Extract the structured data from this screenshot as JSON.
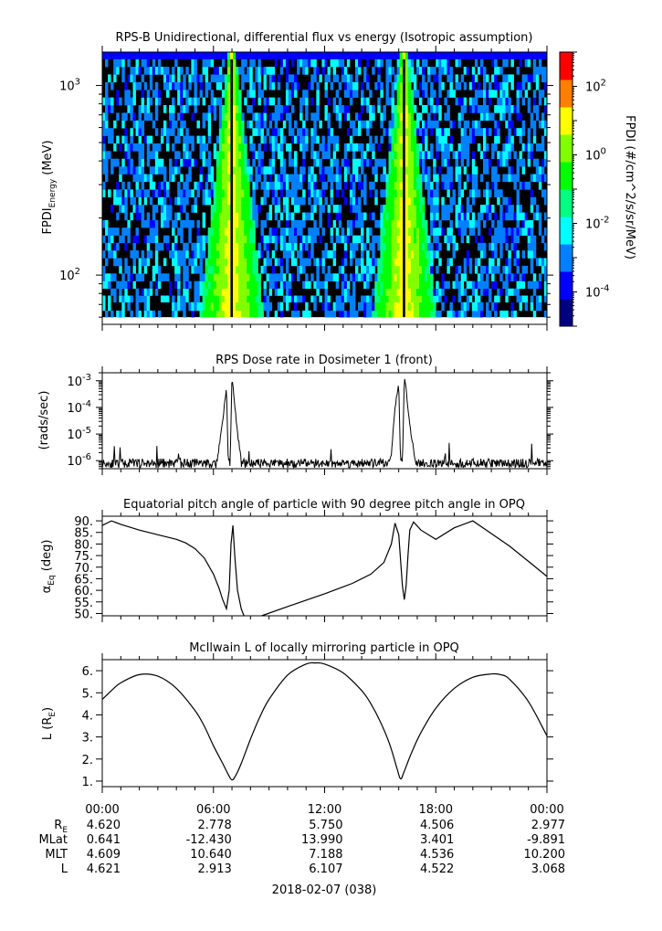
{
  "chart_data": [
    {
      "type": "heatmap",
      "title": "RPS-B  Unidirectional, differential flux vs energy (Isotropic assumption)",
      "ylabel": "FPDI",
      "ylabel_sub": "Energy",
      "ylabel_unit": " (MeV)",
      "yscale": "log",
      "ylim": [
        55,
        1500
      ],
      "yticks": [
        {
          "value": 100,
          "base": "10",
          "exp": "2"
        },
        {
          "value": 1000,
          "base": "10",
          "exp": "3"
        }
      ],
      "x_hours_range": [
        0,
        24
      ],
      "energy_bins_mev": [
        60,
        65,
        72,
        78,
        85,
        93,
        102,
        112,
        123,
        135,
        148,
        162,
        178,
        195,
        214,
        235,
        258,
        283,
        311,
        341,
        374,
        411,
        451,
        495,
        543,
        596,
        654,
        718,
        788,
        865,
        949,
        1042,
        1144,
        1255,
        1378
      ],
      "flux_peaks_hours": [
        7.0,
        16.3
      ],
      "colorbar": {
        "label": "FPDI (#/cm^2/s/sr/MeV)",
        "scale": "log",
        "range": [
          1e-05,
          1000
        ],
        "colors": [
          "#000080",
          "#0000ff",
          "#0080ff",
          "#00ffff",
          "#00ff80",
          "#00ff00",
          "#80ff00",
          "#ffff00",
          "#ff8000",
          "#ff0000"
        ],
        "ticks": [
          {
            "value": 0.0001,
            "base": "10",
            "exp": "-4"
          },
          {
            "value": 0.01,
            "base": "10",
            "exp": "-2"
          },
          {
            "value": 1,
            "base": "10",
            "exp": "0"
          },
          {
            "value": 100,
            "base": "10",
            "exp": "2"
          }
        ]
      }
    },
    {
      "type": "line",
      "title": "RPS  Dose rate in Dosimeter 1 (front)",
      "ylabel": "(rads/sec)",
      "yscale": "log",
      "ylim": [
        5e-07,
        0.002
      ],
      "yticks": [
        {
          "value": 1e-06,
          "base": "10",
          "exp": "-6"
        },
        {
          "value": 1e-05,
          "base": "10",
          "exp": "-5"
        },
        {
          "value": 0.0001,
          "base": "10",
          "exp": "-4"
        },
        {
          "value": 0.001,
          "base": "10",
          "exp": "-3"
        }
      ],
      "x_hours": [
        0,
        5.9,
        6.2,
        6.5,
        6.7,
        6.8,
        6.9,
        7.0,
        7.1,
        7.3,
        7.5,
        8.0,
        15.3,
        15.6,
        15.8,
        16.0,
        16.1,
        16.2,
        16.3,
        16.4,
        16.6,
        16.9,
        17.3,
        24
      ],
      "values": [
        8e-07,
        8e-07,
        1e-06,
        3e-05,
        0.0006,
        8e-07,
        8e-07,
        0.0012,
        0.0003,
        1e-05,
        1.2e-06,
        8e-07,
        8e-07,
        1.5e-06,
        0.0001,
        0.0009,
        8e-07,
        8e-07,
        0.0015,
        0.0005,
        2e-05,
        1e-06,
        8e-07,
        8e-07
      ],
      "baseline_noise_level": 8e-07
    },
    {
      "type": "line",
      "title": "Equatorial pitch angle of particle with 90 degree pitch angle in OPQ",
      "ylabel": "α",
      "ylabel_sub": "Eq",
      "ylabel_unit": " (deg)",
      "ylim": [
        49,
        92
      ],
      "yticks": [
        50,
        55,
        60,
        65,
        70,
        75,
        80,
        85,
        90
      ],
      "ytick_labels": [
        "50.",
        "55.",
        "60.",
        "65.",
        "70.",
        "75.",
        "80.",
        "85.",
        "90."
      ],
      "segments": [
        {
          "x_hours": [
            0,
            0.5,
            1,
            2,
            3,
            4,
            4.5,
            5,
            5.5,
            6,
            6.3,
            6.5,
            6.7,
            6.85,
            6.95,
            7.05,
            7.15,
            7.3,
            7.5,
            7.65
          ],
          "values": [
            88,
            90,
            88.5,
            86,
            84,
            82,
            80.5,
            78,
            74,
            67,
            61,
            56,
            52,
            60,
            80,
            88,
            75,
            60,
            52,
            49
          ]
        },
        {
          "x_hours": [
            8.6,
            10,
            12,
            13.5,
            14.5,
            15.2,
            15.6,
            15.8,
            16.0,
            16.1,
            16.2,
            16.3,
            16.4,
            16.5,
            16.6,
            16.8,
            17.2,
            18,
            19,
            20,
            21,
            22,
            23,
            24
          ],
          "values": [
            49,
            53,
            58.5,
            63,
            67,
            72,
            80,
            89,
            84,
            73,
            62,
            56,
            62,
            75,
            86,
            89.5,
            86,
            82,
            87,
            90,
            84.5,
            79,
            72.5,
            66
          ]
        }
      ]
    },
    {
      "type": "line",
      "title": "McIlwain L of locally mirroring particle in OPQ",
      "ylabel": "L (R",
      "ylabel_sub": "E",
      "ylabel_unit": ")",
      "ylim": [
        0.75,
        6.5
      ],
      "yticks": [
        1,
        2,
        3,
        4,
        5,
        6
      ],
      "ytick_labels": [
        "1.",
        "2.",
        "3.",
        "4.",
        "5.",
        "6."
      ],
      "x_hours": [
        0,
        0.5,
        1,
        2,
        3,
        4,
        5,
        5.5,
        6,
        6.5,
        6.8,
        7.0,
        7.2,
        7.5,
        8,
        8.5,
        9,
        10,
        11,
        11.5,
        12,
        13,
        14,
        14.5,
        15,
        15.5,
        15.9,
        16.1,
        16.3,
        16.7,
        17.2,
        18,
        19,
        20,
        21,
        21.5,
        22,
        23,
        24
      ],
      "values": [
        4.7,
        5.1,
        5.45,
        5.82,
        5.75,
        5.2,
        4.2,
        3.5,
        2.6,
        1.8,
        1.3,
        1.05,
        1.25,
        1.8,
        2.9,
        3.9,
        4.7,
        5.8,
        6.3,
        6.35,
        6.3,
        5.9,
        5.1,
        4.5,
        3.7,
        2.7,
        1.6,
        1.1,
        1.45,
        2.3,
        3.2,
        4.3,
        5.2,
        5.7,
        5.85,
        5.82,
        5.6,
        4.6,
        3.05
      ]
    }
  ],
  "time_axis": {
    "hours": [
      0,
      6,
      12,
      18,
      24
    ],
    "labels": [
      "00:00",
      "06:00",
      "12:00",
      "18:00",
      "00:00"
    ],
    "date_label": "2018-02-07 (038)"
  },
  "ephemeris": {
    "rows": [
      {
        "label": "R",
        "sub": "E",
        "values": [
          "4.620",
          "2.778",
          "5.750",
          "4.506",
          "2.977"
        ]
      },
      {
        "label": "MLat",
        "sub": "",
        "values": [
          "0.641",
          "-12.430",
          "13.990",
          "3.401",
          "-9.891"
        ]
      },
      {
        "label": "MLT",
        "sub": "",
        "values": [
          "4.609",
          "10.640",
          "7.188",
          "4.536",
          "10.200"
        ]
      },
      {
        "label": "L",
        "sub": "",
        "values": [
          "4.621",
          "2.913",
          "6.107",
          "4.522",
          "3.068"
        ]
      }
    ]
  }
}
